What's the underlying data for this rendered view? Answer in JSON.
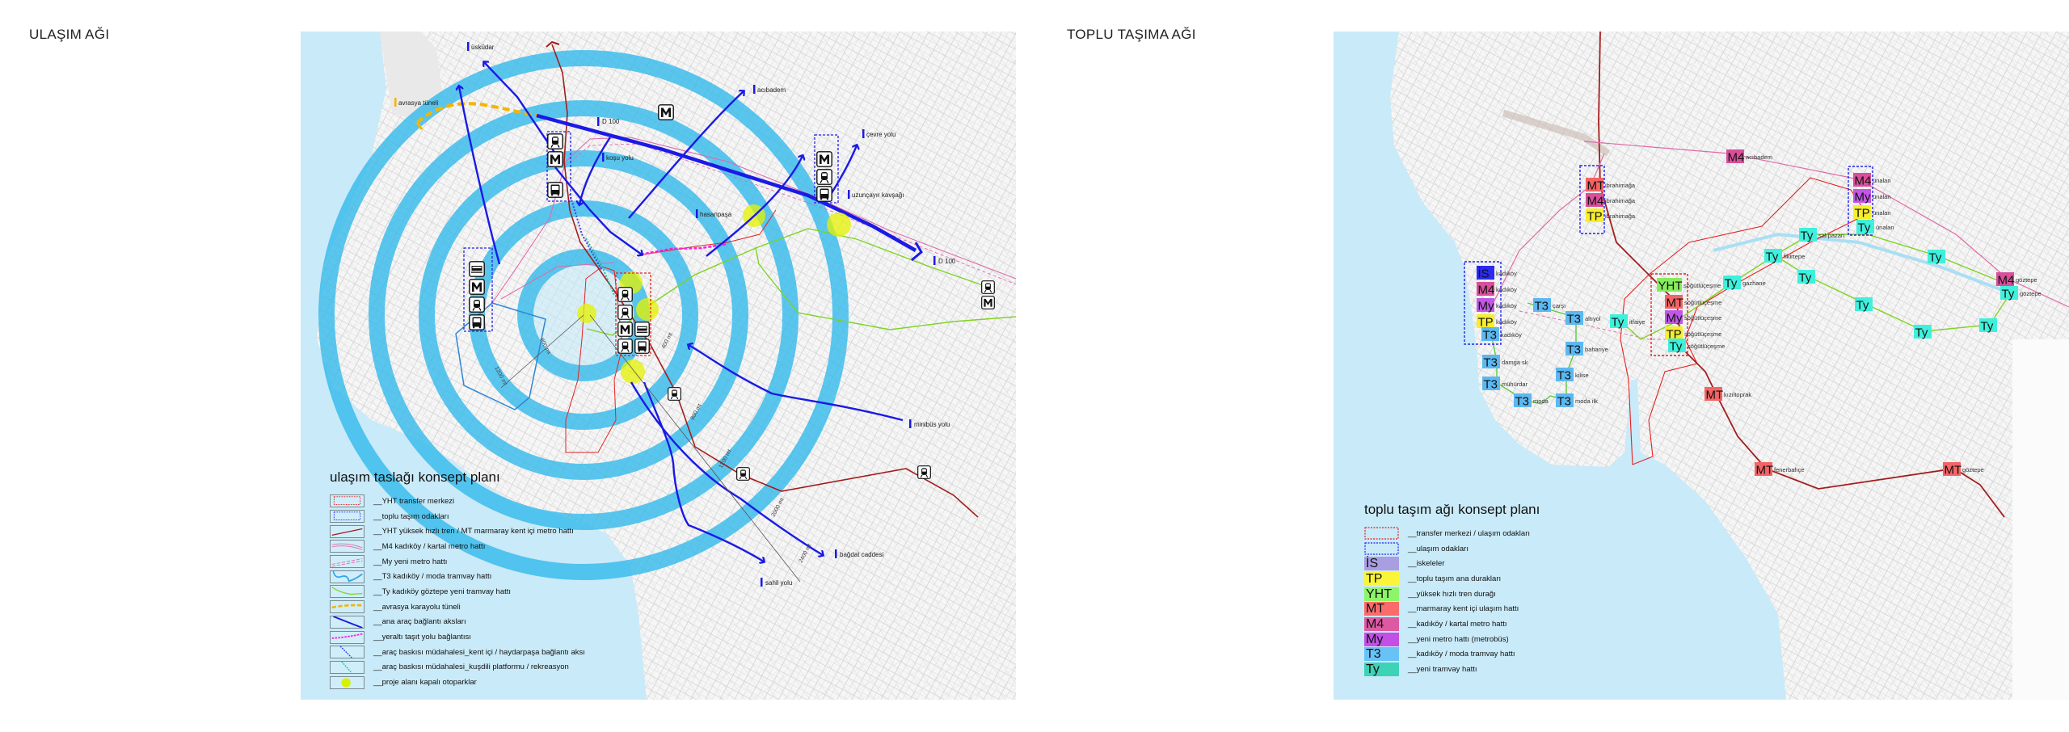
{
  "titles": {
    "left": "ULAŞIM AĞI",
    "right": "TOPLU TAŞIMA AĞI"
  },
  "palette": {
    "water": "#c9eaf8",
    "ring": "#2fb9ec",
    "road_axis": "#1a1ae6",
    "yht_line": "#a31d1d",
    "m4_line": "#e06aa8",
    "t3_line": "#2f86d6",
    "ty_line": "#7ed321",
    "avrasya": "#f5b400",
    "underground": "#ff1ee0",
    "parking": "#e6f200"
  },
  "left_map": {
    "labels": {
      "uskudar": "üsküdar",
      "avrasya": "avrasya tüneli",
      "d100_a": "D 100",
      "kosu": "koşu yolu",
      "acibadem": "acıbadem",
      "hasanpasa": "hasanpaşa",
      "uzuncayir": "uzunçayır kavşağı",
      "cevre": "çevre yolu",
      "d100_b": "D 100",
      "minibus": "minibüs yolu",
      "bagdat": "bağdat caddesi",
      "sahil": "sahil yolu"
    },
    "distance_marks": [
      "400 mt",
      "800 mt",
      "1200 mt",
      "2000 mt",
      "2400 mt",
      "800 mt",
      "1200 mt"
    ],
    "legend": {
      "title": "ulaşım taslağı konsept planı",
      "items": [
        "__YHT transfer merkezi",
        "__toplu taşım odakları",
        "__YHT yüksek hızlı tren / MT marmaray kent içi metro hattı",
        "__M4 kadıköy / kartal metro hattı",
        "__My yeni metro hattı",
        "__T3 kadıköy / moda tramvay hattı",
        "__Ty kadıköy göztepe yeni tramvay hattı",
        "__avrasya karayolu tüneli",
        "__ana araç bağlantı aksları",
        "__yeraltı taşıt yolu bağlantısı",
        "__araç baskısı müdahalesi_kent içi / haydarpaşa bağlantı aksı",
        "__araç baskısı müdahalesi_kuşdili platformu / rekreasyon",
        "__proje alanı kapalı otoparklar"
      ]
    }
  },
  "right_map": {
    "codes": {
      "IS": {
        "text": "İS",
        "map_color": "#2a2af2",
        "legend_color": "#a99ee2"
      },
      "TP": {
        "text": "TP",
        "map_color": "#f6ee2e",
        "legend_color": "#fbf53a"
      },
      "YHT": {
        "text": "YHT",
        "map_color": "#86ec5e",
        "legend_color": "#8ef56a"
      },
      "MT": {
        "text": "MT",
        "map_color": "#f46464",
        "legend_color": "#fb6b6b"
      },
      "M4": {
        "text": "M4",
        "map_color": "#d84f9b",
        "legend_color": "#dd5aa3"
      },
      "My": {
        "text": "My",
        "map_color": "#c257e6",
        "legend_color": "#c24fe6"
      },
      "T3": {
        "text": "T3",
        "map_color": "#5cb8f0",
        "legend_color": "#68c2f5"
      },
      "Ty": {
        "text": "Ty",
        "map_color": "#3ff0dc",
        "legend_color": "#3dd3b6"
      }
    },
    "stations": [
      {
        "code": "MT",
        "name": "ibrahimağa"
      },
      {
        "code": "M4",
        "name": "ibrahimağa"
      },
      {
        "code": "TP",
        "name": "ibrahimağa"
      },
      {
        "code": "M4",
        "name": "acıbadem"
      },
      {
        "code": "M4",
        "name": "ünalan"
      },
      {
        "code": "My",
        "name": "ünalan"
      },
      {
        "code": "TP",
        "name": "ünalan"
      },
      {
        "code": "Ty",
        "name": "ünalan"
      },
      {
        "code": "Ty",
        "name": "salıpazarı"
      },
      {
        "code": "IS",
        "name": "kadıköy"
      },
      {
        "code": "M4",
        "name": "kadıköy"
      },
      {
        "code": "My",
        "name": "kadıköy"
      },
      {
        "code": "TP",
        "name": "kadıköy"
      },
      {
        "code": "T3",
        "name": "kadıköy"
      },
      {
        "code": "T3",
        "name": "çarşı"
      },
      {
        "code": "T3",
        "name": "altıyol"
      },
      {
        "code": "Ty",
        "name": "itfaiye"
      },
      {
        "code": "YHT",
        "name": "söğütlüçeşme"
      },
      {
        "code": "MT",
        "name": "söğütlüçeşme"
      },
      {
        "code": "My",
        "name": "söğütlüçeşme"
      },
      {
        "code": "TP",
        "name": "söğütlüçeşme"
      },
      {
        "code": "Ty",
        "name": "söğütlüçeşme"
      },
      {
        "code": "Ty",
        "name": "gazhane"
      },
      {
        "code": "Ty",
        "name": "fikirtepe"
      },
      {
        "code": "Ty",
        "name": ""
      },
      {
        "code": "Ty",
        "name": ""
      },
      {
        "code": "Ty",
        "name": ""
      },
      {
        "code": "Ty",
        "name": ""
      },
      {
        "code": "Ty",
        "name": ""
      },
      {
        "code": "M4",
        "name": "göztepe"
      },
      {
        "code": "Ty",
        "name": "göztepe"
      },
      {
        "code": "T3",
        "name": "bahariye"
      },
      {
        "code": "T3",
        "name": "kilise"
      },
      {
        "code": "T3",
        "name": "damga sk"
      },
      {
        "code": "T3",
        "name": "mühürdar"
      },
      {
        "code": "T3",
        "name": "moda"
      },
      {
        "code": "T3",
        "name": "moda ilk"
      },
      {
        "code": "MT",
        "name": "kızıltoprak"
      },
      {
        "code": "MT",
        "name": "fenerbahçe"
      },
      {
        "code": "MT",
        "name": "göztepe"
      }
    ],
    "legend": {
      "title": "toplu taşım ağı konsept planı",
      "box_items": [
        "__transfer merkezi / ulaşım odakları",
        "__ulaşım odakları"
      ],
      "code_items": [
        {
          "code": "IS",
          "label": "__iskeleler"
        },
        {
          "code": "TP",
          "label": "__toplu taşım ana durakları"
        },
        {
          "code": "YHT",
          "label": "__yüksek hızlı tren durağı"
        },
        {
          "code": "MT",
          "label": "__marmaray kent içi ulaşım hattı"
        },
        {
          "code": "M4",
          "label": "__kadıköy / kartal metro hattı"
        },
        {
          "code": "My",
          "label": "__yeni metro hattı (metrobüs)"
        },
        {
          "code": "T3",
          "label": "__kadıköy / moda tramvay hattı"
        },
        {
          "code": "Ty",
          "label": "__yeni tramvay hattı"
        }
      ]
    }
  }
}
